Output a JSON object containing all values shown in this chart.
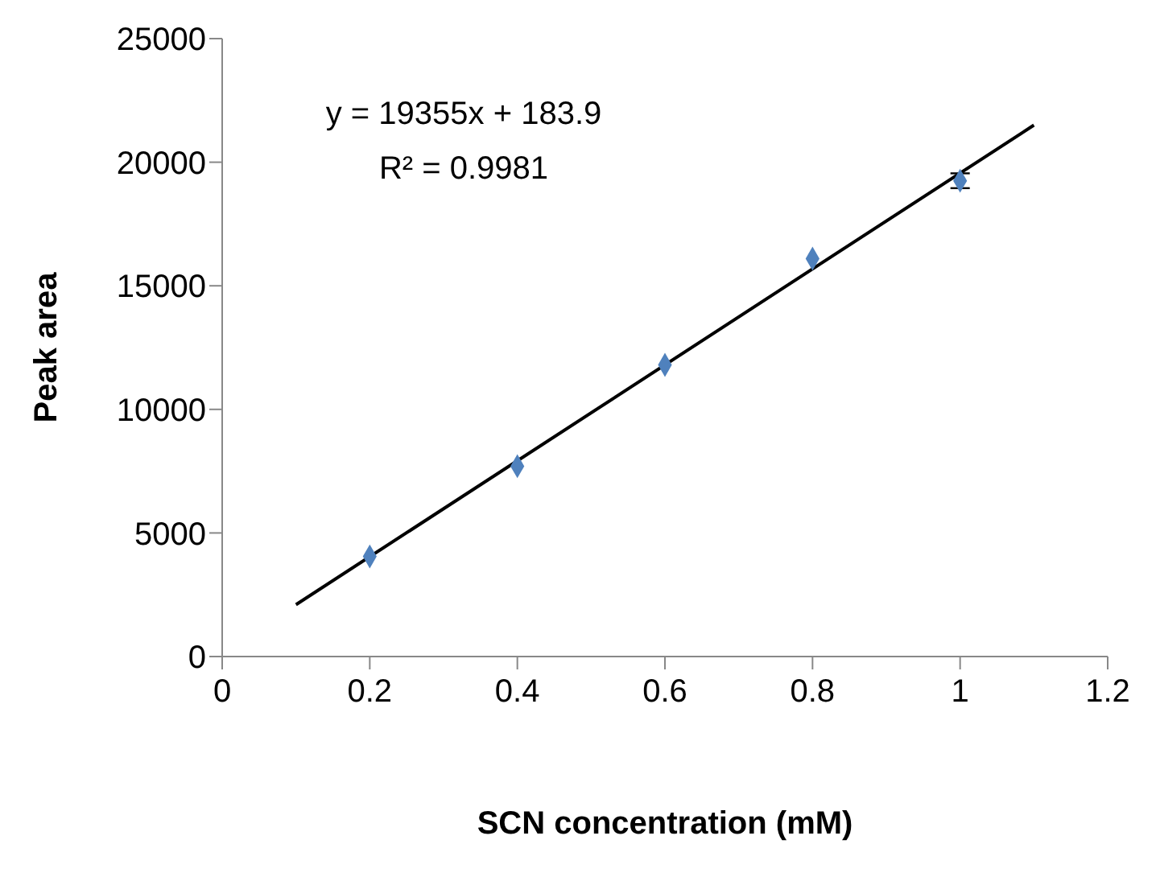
{
  "chart_data": {
    "type": "scatter",
    "xlabel": "SCN concentration (mM)",
    "ylabel": "Peak area",
    "annotations": [
      "y = 19355x + 183.9",
      "R² = 0.9981"
    ],
    "xlim": [
      0,
      1.2
    ],
    "xticks": [
      0,
      0.2,
      0.4,
      0.6,
      0.8,
      1,
      1.2
    ],
    "ylim": [
      0,
      25000
    ],
    "yticks": [
      0,
      5000,
      10000,
      15000,
      20000,
      25000
    ],
    "grid": false,
    "marker": "diamond",
    "series": [
      {
        "color": "#4f81bd",
        "x": [
          0.2,
          0.4,
          0.6,
          0.8,
          1
        ],
        "values": [
          4050,
          7700,
          11800,
          16100,
          19250
        ],
        "errors": [
          null,
          null,
          null,
          null,
          300
        ]
      },
      {
        "type": "line",
        "color": "#000000",
        "marker": "none",
        "x": [
          0.1,
          1.1
        ],
        "values": [
          2100,
          21500
        ]
      }
    ]
  }
}
